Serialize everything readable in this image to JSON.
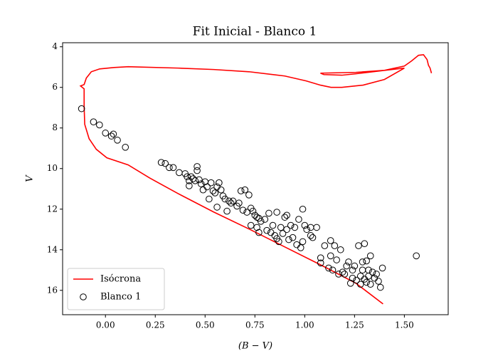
{
  "chart_data": {
    "type": "scatter",
    "title": "Fit Inicial - Blanco 1",
    "x_label": "(B − V)",
    "y_label": "V",
    "xlim": [
      -0.215,
      1.72
    ],
    "ylim": [
      17.2,
      3.8
    ],
    "xticks": [
      {
        "value": 0,
        "label": "0.00"
      },
      {
        "value": 0.25,
        "label": "0.25"
      },
      {
        "value": 0.5,
        "label": "0.50"
      },
      {
        "value": 0.75,
        "label": "0.75"
      },
      {
        "value": 1,
        "label": "1.00"
      },
      {
        "value": 1.25,
        "label": "1.25"
      },
      {
        "value": 1.5,
        "label": "1.50"
      }
    ],
    "yticks": [
      4,
      6,
      8,
      10,
      12,
      14,
      16
    ],
    "grid": false,
    "legend": "lower left",
    "series": [
      {
        "name": "Isócrona",
        "type": "line",
        "color": "#ff0000",
        "x": [
          1.393,
          1.257,
          1.079,
          0.9,
          0.721,
          0.543,
          0.364,
          0.221,
          0.114,
          0.007,
          -0.046,
          -0.082,
          -0.104,
          -0.107,
          -0.107,
          -0.125,
          -0.107,
          -0.096,
          -0.071,
          -0.029,
          0.043,
          0.114,
          0.364,
          0.543,
          0.721,
          0.9,
          1.007,
          1.079,
          1.132,
          1.186,
          1.293,
          1.4,
          1.5,
          1.257,
          1.186,
          1.096,
          1.079,
          1.257,
          1.4,
          1.5,
          1.536,
          1.571,
          1.596,
          1.614,
          1.621,
          1.629,
          1.636
        ],
        "values": [
          16.67,
          15.65,
          14.74,
          13.86,
          12.98,
          12.14,
          11.23,
          10.46,
          9.82,
          9.47,
          9.05,
          8.53,
          7.82,
          6.95,
          6.07,
          5.93,
          5.86,
          5.54,
          5.23,
          5.09,
          5.02,
          4.98,
          5.05,
          5.12,
          5.23,
          5.44,
          5.68,
          5.89,
          6.0,
          6.0,
          5.89,
          5.61,
          5.05,
          5.33,
          5.4,
          5.37,
          5.3,
          5.26,
          5.16,
          4.95,
          4.7,
          4.42,
          4.39,
          4.63,
          4.91,
          5.05,
          5.3
        ]
      },
      {
        "name": "Blanco 1",
        "type": "scatter",
        "color": "#000000",
        "x": [
          -0.12,
          -0.06,
          -0.03,
          0,
          0.03,
          0.04,
          0.06,
          0.1,
          0.28,
          0.3,
          0.32,
          0.34,
          0.37,
          0.4,
          0.41,
          0.42,
          0.42,
          0.43,
          0.44,
          0.45,
          0.46,
          0.46,
          0.47,
          0.48,
          0.49,
          0.5,
          0.51,
          0.52,
          0.53,
          0.54,
          0.55,
          0.56,
          0.56,
          0.57,
          0.58,
          0.59,
          0.6,
          0.61,
          0.62,
          0.63,
          0.64,
          0.66,
          0.67,
          0.68,
          0.69,
          0.7,
          0.71,
          0.72,
          0.73,
          0.73,
          0.74,
          0.75,
          0.76,
          0.76,
          0.77,
          0.77,
          0.78,
          0.8,
          0.81,
          0.82,
          0.83,
          0.84,
          0.85,
          0.86,
          0.86,
          0.87,
          0.88,
          0.89,
          0.9,
          0.91,
          0.91,
          0.92,
          0.93,
          0.94,
          0.95,
          0.96,
          0.97,
          0.98,
          0.99,
          0.99,
          1.0,
          1.01,
          1.03,
          1.03,
          1.04,
          1.06,
          1.08,
          1.08,
          1.1,
          1.12,
          1.13,
          1.13,
          1.14,
          1.15,
          1.16,
          1.17,
          1.18,
          1.19,
          1.2,
          1.21,
          1.22,
          1.23,
          1.24,
          1.24,
          1.25,
          1.26,
          1.27,
          1.28,
          1.28,
          1.29,
          1.29,
          1.3,
          1.3,
          1.31,
          1.31,
          1.32,
          1.32,
          1.33,
          1.33,
          1.34,
          1.35,
          1.36,
          1.37,
          1.38,
          1.39,
          1.56
        ],
        "values": [
          7.05,
          7.7,
          7.85,
          8.25,
          8.4,
          8.3,
          8.6,
          8.95,
          9.7,
          9.75,
          9.95,
          9.95,
          10.2,
          10.25,
          10.4,
          10.6,
          10.85,
          10.4,
          10.5,
          10.6,
          9.9,
          10.1,
          10.55,
          10.75,
          11.05,
          10.65,
          10.9,
          11.5,
          10.7,
          11.1,
          11.2,
          10.9,
          11.9,
          10.7,
          11.05,
          11.35,
          11.5,
          12.1,
          11.6,
          11.7,
          11.6,
          11.85,
          11.7,
          11.1,
          12.05,
          11.05,
          12.15,
          11.3,
          11.95,
          12.8,
          12.1,
          12.3,
          12.4,
          12.9,
          12.45,
          13.15,
          12.6,
          12.5,
          13.05,
          12.2,
          13.15,
          12.8,
          13.3,
          12.15,
          13.45,
          13.6,
          12.9,
          13.2,
          12.4,
          12.3,
          13.0,
          13.5,
          12.8,
          13.4,
          12.9,
          13.75,
          12.5,
          13.9,
          12.0,
          13.6,
          12.8,
          13.0,
          12.9,
          13.3,
          13.4,
          12.9,
          14.4,
          14.65,
          13.8,
          14.9,
          13.55,
          14.3,
          15.0,
          13.8,
          14.5,
          15.2,
          14.0,
          15.1,
          15.2,
          14.8,
          14.6,
          15.65,
          15.0,
          15.4,
          14.8,
          15.5,
          13.8,
          15.3,
          15.7,
          14.6,
          15.0,
          13.7,
          15.45,
          14.55,
          15.6,
          15.0,
          15.3,
          14.3,
          15.7,
          15.1,
          15.4,
          15.2,
          15.55,
          15.85,
          14.9,
          14.3
        ]
      }
    ]
  }
}
